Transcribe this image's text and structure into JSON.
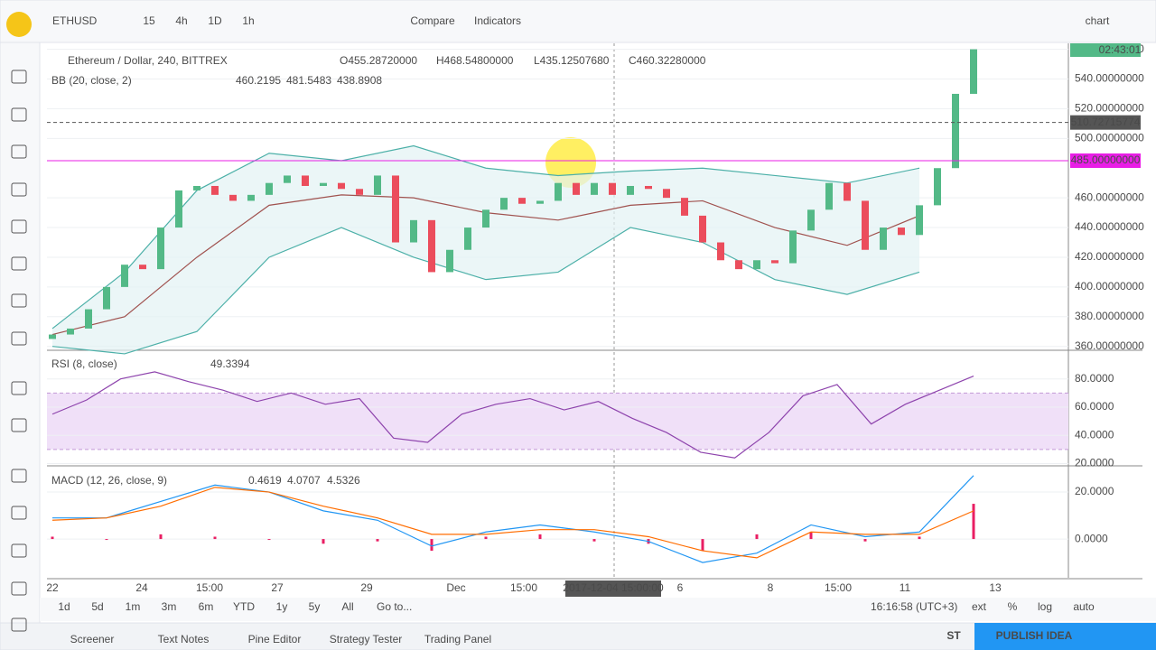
{
  "toolbar": {
    "symbol": "ETHUSD",
    "intervals": [
      "15",
      "4h",
      "1D",
      "1h"
    ],
    "compare": "Compare",
    "indicators": "Indicators",
    "layout": "chart"
  },
  "legend": {
    "title": "Ethereum / Dollar, 240, BITTREX",
    "ohlc": [
      "O455.28720000",
      "H468.54800000",
      "L435.12507680",
      "C460.32280000"
    ]
  },
  "chart_data": [
    {
      "type": "candlestick",
      "indicator": "BB (20, close, 2)",
      "indicator_values": [
        "460.2195",
        "481.5483",
        "438.8908"
      ],
      "open": [
        365,
        368,
        372,
        385,
        400,
        415,
        412,
        440,
        465,
        468,
        462,
        458,
        462,
        470,
        475,
        468,
        470,
        466,
        462,
        475,
        430,
        445,
        410,
        425,
        440,
        452,
        460,
        456,
        458,
        470,
        462,
        470,
        462,
        468,
        466,
        460,
        448,
        430,
        418,
        412,
        418,
        416,
        438,
        452,
        470,
        458,
        425,
        440,
        435,
        455,
        480,
        530
      ],
      "close": [
        368,
        372,
        385,
        400,
        415,
        412,
        440,
        465,
        468,
        462,
        458,
        462,
        470,
        475,
        468,
        470,
        466,
        462,
        475,
        430,
        445,
        410,
        425,
        440,
        452,
        460,
        456,
        458,
        470,
        462,
        470,
        462,
        468,
        466,
        460,
        448,
        430,
        418,
        412,
        418,
        416,
        438,
        452,
        470,
        458,
        425,
        440,
        435,
        455,
        480,
        530,
        560
      ],
      "bb_upper": [
        372,
        410,
        465,
        490,
        485,
        495,
        480,
        475,
        478,
        480,
        475,
        470,
        480
      ],
      "bb_middle": [
        368,
        380,
        420,
        455,
        462,
        460,
        450,
        445,
        455,
        458,
        440,
        428,
        448
      ],
      "bb_lower": [
        360,
        355,
        370,
        420,
        440,
        420,
        405,
        410,
        440,
        430,
        405,
        395,
        410
      ],
      "ylim": [
        358,
        564
      ],
      "yticks": [
        {
          "value": 360,
          "label": "360.00000000"
        },
        {
          "value": 380,
          "label": "380.00000000"
        },
        {
          "value": 400,
          "label": "400.00000000"
        },
        {
          "value": 420,
          "label": "420.00000000"
        },
        {
          "value": 440,
          "label": "440.00000000"
        },
        {
          "value": 460,
          "label": "460.00000000"
        },
        {
          "value": 500,
          "label": "500.00000000"
        },
        {
          "value": 520,
          "label": "520.00000000"
        },
        {
          "value": 540,
          "label": "540.00000000"
        },
        {
          "value": 560,
          "label": "560.00000000"
        }
      ],
      "lines": [
        {
          "value": 510.72715774,
          "label": "510.72715774",
          "color": "#555555"
        },
        {
          "value": 485,
          "label": "485.00000000",
          "color": "#e91ee6"
        }
      ],
      "time_tag": "02:43:01",
      "up_color": "#53b987",
      "down_color": "#eb4d5c"
    },
    {
      "type": "line",
      "title": "RSI (8, close)",
      "value_label": "49.3394",
      "values": [
        55,
        65,
        80,
        85,
        78,
        72,
        64,
        70,
        62,
        66,
        38,
        35,
        55,
        62,
        66,
        58,
        64,
        52,
        42,
        28,
        24,
        42,
        68,
        76,
        48,
        62,
        72,
        82
      ],
      "band": [
        30,
        70
      ],
      "color": "#8e44ad",
      "ylim": [
        19,
        99
      ],
      "yticks": [
        {
          "value": 20,
          "label": "20.0000"
        },
        {
          "value": 40,
          "label": "40.0000"
        },
        {
          "value": 60,
          "label": "60.0000"
        },
        {
          "value": 80,
          "label": "80.0000"
        }
      ]
    },
    {
      "type": "macd",
      "title": "MACD (12, 26, close, 9)",
      "value_labels": [
        "0.4619",
        "4.0707",
        "4.5326"
      ],
      "series": [
        {
          "name": "MACD",
          "color": "#2196f3",
          "values": [
            9,
            9,
            16,
            23,
            20,
            12,
            8,
            -3,
            3,
            6,
            3,
            -1,
            -10,
            -6,
            6,
            1,
            3,
            27
          ]
        },
        {
          "name": "Signal",
          "color": "#ff6d00",
          "values": [
            8,
            9,
            14,
            22,
            20,
            14,
            9,
            2,
            2,
            4,
            4,
            1,
            -5,
            -8,
            3,
            2,
            2,
            12
          ]
        }
      ],
      "histogram": {
        "color": "#e91e63",
        "values": [
          1,
          0,
          2,
          1,
          0,
          -2,
          -1,
          -5,
          1,
          2,
          -1,
          -2,
          -5,
          2,
          3,
          -1,
          1,
          15
        ]
      },
      "ylim": [
        -16.5,
        30.4
      ],
      "yticks": [
        {
          "value": 0,
          "label": "0.0000"
        },
        {
          "value": 20,
          "label": "20.0000"
        }
      ]
    }
  ],
  "x_axis": {
    "labels": [
      "22",
      "24",
      "15:00",
      "27",
      "29",
      "Dec",
      "15:00",
      "2017-12-04 15:00:00",
      "6",
      "8",
      "15:00",
      "11",
      "13"
    ]
  },
  "bottom_bar": {
    "ranges": [
      "1d",
      "5d",
      "1m",
      "3m",
      "6m",
      "YTD",
      "1y",
      "5y",
      "All"
    ],
    "goto": "Go to...",
    "clock": "16:16:58 (UTC+3)",
    "options": [
      "ext",
      "%",
      "log",
      "auto"
    ]
  },
  "footer": {
    "tabs": [
      "Screener",
      "Text Notes",
      "Pine Editor",
      "Strategy Tester",
      "Trading Panel"
    ],
    "logo": "ST",
    "publish": "PUBLISH IDEA"
  }
}
